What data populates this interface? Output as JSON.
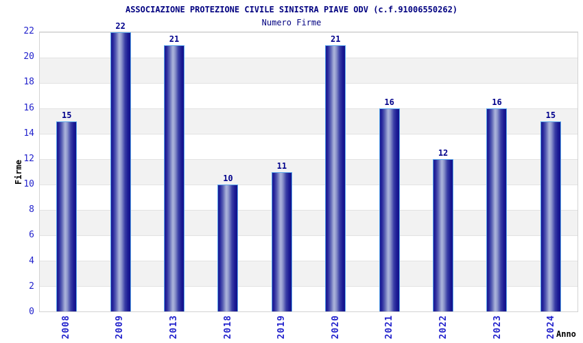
{
  "chart_data": {
    "type": "bar",
    "title": "ASSOCIAZIONE PROTEZIONE CIVILE SINISTRA PIAVE ODV (c.f.91006550262)",
    "subtitle": "Numero Firme",
    "xlabel": "Anno",
    "ylabel": "Firme",
    "categories": [
      "2008",
      "2009",
      "2013",
      "2018",
      "2019",
      "2020",
      "2021",
      "2022",
      "2023",
      "2024"
    ],
    "values": [
      15,
      22,
      21,
      10,
      11,
      21,
      16,
      12,
      16,
      15
    ],
    "ylim": [
      0,
      22
    ],
    "yticks": [
      0,
      2,
      4,
      6,
      8,
      10,
      12,
      14,
      16,
      18,
      20,
      22
    ],
    "legend_position": "none",
    "grid": "horizontal gridlines every 2 with alternating white/gray bands",
    "colors": {
      "title_text": "#000080",
      "value_label_text": "#00008b",
      "axis_tick_text": "#2222cc",
      "axis_title_text": "#000000",
      "bar_dark": "#191992",
      "bar_highlight": "#aab2da",
      "bar_border": "#58a4ea",
      "band_gray": "#f2f2f2",
      "gridline": "#e2e2e2",
      "background": "#ffffff"
    }
  }
}
